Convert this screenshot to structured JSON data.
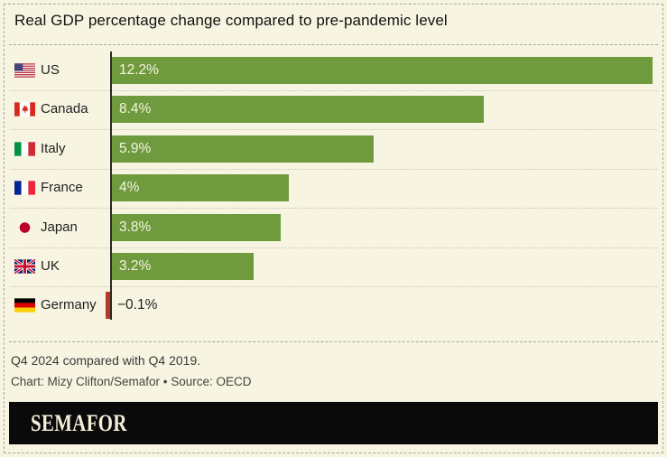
{
  "title": "Real GDP percentage change compared to pre-pandemic level",
  "chart_data": {
    "type": "bar",
    "orientation": "horizontal",
    "title": "Real GDP percentage change compared to pre-pandemic level",
    "categories": [
      "US",
      "Canada",
      "Italy",
      "France",
      "Japan",
      "UK",
      "Germany"
    ],
    "values": [
      12.2,
      8.4,
      5.9,
      4,
      3.8,
      3.2,
      -0.1
    ],
    "value_labels": [
      "12.2%",
      "8.4%",
      "5.9%",
      "4%",
      "3.8%",
      "3.2%",
      "−0.1%"
    ],
    "xlim": [
      -0.35,
      12.2
    ],
    "grid": false,
    "legend": "none",
    "bar_color": "#6f9b3e",
    "negative_bar_color": "#b5382b",
    "note": "Q4 2024 compared with Q4 2019.",
    "credit": "Chart: Mizy Clifton/Semafor • Source: OECD"
  },
  "rows": [
    {
      "country": "US",
      "value": 12.2,
      "label": "12.2%",
      "flag": "us-flag"
    },
    {
      "country": "Canada",
      "value": 8.4,
      "label": "8.4%",
      "flag": "canada-flag"
    },
    {
      "country": "Italy",
      "value": 5.9,
      "label": "5.9%",
      "flag": "italy-flag"
    },
    {
      "country": "France",
      "value": 4,
      "label": "4%",
      "flag": "france-flag"
    },
    {
      "country": "Japan",
      "value": 3.8,
      "label": "3.8%",
      "flag": "japan-flag"
    },
    {
      "country": "UK",
      "value": 3.2,
      "label": "3.2%",
      "flag": "uk-flag"
    },
    {
      "country": "Germany",
      "value": -0.1,
      "label": "−0.1%",
      "flag": "germany-flag"
    }
  ],
  "footer": {
    "note": "Q4 2024 compared with Q4 2019.",
    "credit": "Chart: Mizy Clifton/Semafor • Source: OECD"
  },
  "logo": {
    "text": "SEMAFOR"
  },
  "colors": {
    "background": "#f8f4e2",
    "bar": "#6f9b3e",
    "negative_bar": "#b5382b",
    "axis": "#2b2a26",
    "logo_background": "#0a0a0a",
    "logo_text": "#f5efd9"
  }
}
